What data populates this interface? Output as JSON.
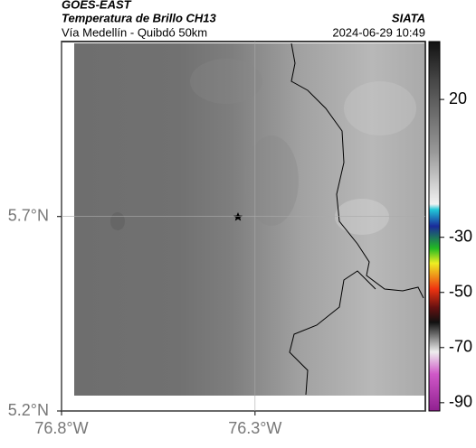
{
  "header": {
    "source": "GOES-EAST",
    "product": "Temperatura de Brillo CH13",
    "region": "Vía Medellín - Quibdó 50km",
    "agency": "SIATA",
    "timestamp": "2024-06-29 10:49"
  },
  "map": {
    "xlim": [
      -76.8,
      -75.86
    ],
    "ylim": [
      5.2,
      6.15
    ],
    "xticks": [
      {
        "value": -76.8,
        "label": "76.8°W"
      },
      {
        "value": -76.3,
        "label": "76.3°W"
      }
    ],
    "yticks": [
      {
        "value": 5.2,
        "label": "5.2°N"
      },
      {
        "value": 5.7,
        "label": "5.7°N"
      }
    ],
    "grid": true
  },
  "colorbar": {
    "clim": [
      -93,
      41
    ],
    "ticks": [
      20,
      -30,
      -50,
      -70,
      -90
    ]
  }
}
